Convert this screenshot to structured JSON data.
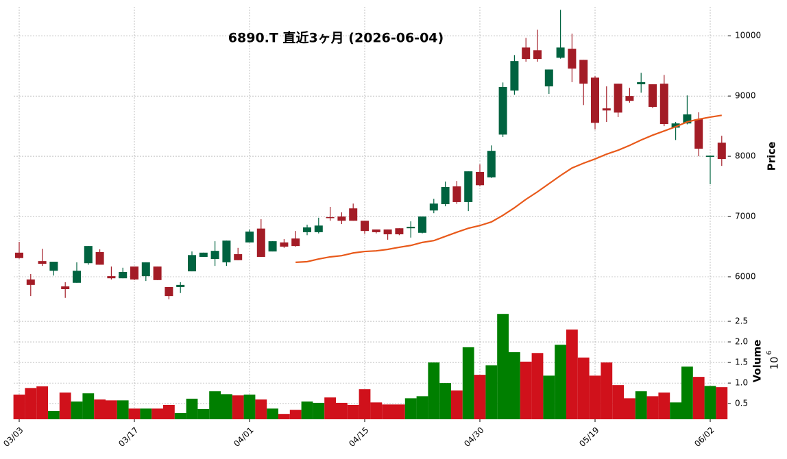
{
  "chart_data": {
    "type": "candlestick",
    "title": "6890.T 直近3ヶ月 (2026-06-04)",
    "categories": [
      "03/03",
      null,
      null,
      null,
      null,
      null,
      null,
      null,
      null,
      null,
      "03/17",
      null,
      null,
      null,
      null,
      null,
      null,
      null,
      null,
      null,
      "04/01",
      null,
      null,
      null,
      null,
      null,
      null,
      null,
      null,
      null,
      "04/15",
      null,
      null,
      null,
      null,
      null,
      null,
      null,
      null,
      null,
      "04/30",
      null,
      null,
      null,
      null,
      null,
      null,
      null,
      null,
      null,
      "05/19",
      null,
      null,
      null,
      null,
      null,
      null,
      null,
      null,
      null,
      "06/02",
      null
    ],
    "open": [
      6400,
      5955,
      6260,
      6100,
      5840,
      5900,
      6225,
      6410,
      6010,
      5975,
      6170,
      6010,
      6170,
      5830,
      5830,
      6090,
      6330,
      6295,
      6240,
      6375,
      6570,
      6800,
      6420,
      6570,
      6635,
      6740,
      6740,
      6990,
      7000,
      7135,
      6930,
      6785,
      6785,
      6805,
      6805,
      6730,
      7100,
      7205,
      7500,
      7240,
      7740,
      7650,
      8360,
      9090,
      9805,
      9760,
      9160,
      9635,
      9785,
      9600,
      9305,
      8795,
      9205,
      9000,
      9195,
      9195,
      9205,
      8475,
      8545,
      8615,
      7990,
      8225
    ],
    "high": [
      6580,
      6045,
      6465,
      6250,
      5910,
      6240,
      6510,
      6455,
      6170,
      6150,
      6170,
      6240,
      6170,
      5830,
      5910,
      6420,
      6400,
      6590,
      6600,
      6480,
      6785,
      6955,
      6590,
      6625,
      6760,
      6865,
      6980,
      7160,
      7070,
      7215,
      6930,
      6785,
      6785,
      6805,
      6920,
      7000,
      7295,
      7580,
      7590,
      7750,
      7865,
      8180,
      9225,
      9680,
      9965,
      10100,
      9440,
      10430,
      10035,
      9600,
      9330,
      9160,
      9205,
      9135,
      9385,
      9195,
      9350,
      8570,
      9010,
      8730,
      8010,
      8340
    ],
    "low": [
      6300,
      5680,
      6180,
      6020,
      5650,
      5900,
      6200,
      6200,
      5955,
      5975,
      5945,
      5930,
      5945,
      5625,
      5730,
      6090,
      6330,
      6180,
      6180,
      6275,
      6570,
      6330,
      6420,
      6480,
      6500,
      6690,
      6720,
      6930,
      6875,
      6930,
      6715,
      6720,
      6615,
      6690,
      6650,
      6720,
      7055,
      7170,
      7210,
      7090,
      7500,
      7640,
      8320,
      9020,
      9570,
      9570,
      9035,
      9620,
      9230,
      8850,
      8445,
      8570,
      8650,
      8890,
      9055,
      8800,
      8500,
      8270,
      8530,
      8000,
      7535,
      7840
    ],
    "close": [
      6310,
      5865,
      6215,
      6250,
      5795,
      6100,
      6510,
      6200,
      5975,
      6080,
      5955,
      6240,
      5945,
      5680,
      5865,
      6360,
      6400,
      6430,
      6600,
      6275,
      6750,
      6330,
      6590,
      6500,
      6510,
      6820,
      6850,
      6980,
      6930,
      6930,
      6760,
      6740,
      6705,
      6705,
      6830,
      7000,
      7215,
      7490,
      7240,
      7750,
      7520,
      8090,
      9150,
      9580,
      9615,
      9615,
      9440,
      9805,
      9455,
      9205,
      8555,
      8760,
      8725,
      8920,
      9230,
      8820,
      8535,
      8545,
      8695,
      8125,
      8010,
      7955
    ],
    "volume": [
      0.72,
      0.88,
      0.92,
      0.32,
      0.77,
      0.55,
      0.75,
      0.6,
      0.58,
      0.58,
      0.38,
      0.38,
      0.38,
      0.47,
      0.27,
      0.62,
      0.37,
      0.8,
      0.73,
      0.7,
      0.72,
      0.6,
      0.38,
      0.25,
      0.35,
      0.55,
      0.52,
      0.65,
      0.52,
      0.47,
      0.85,
      0.53,
      0.48,
      0.48,
      0.63,
      0.68,
      1.5,
      1.0,
      0.82,
      1.87,
      1.2,
      1.43,
      2.68,
      1.75,
      1.52,
      1.73,
      1.18,
      1.93,
      2.3,
      1.62,
      1.18,
      1.5,
      0.95,
      0.63,
      0.8,
      0.68,
      0.77,
      0.53,
      1.4,
      1.15,
      0.93,
      0.9
    ],
    "ma_values": [
      null,
      null,
      null,
      null,
      null,
      null,
      null,
      null,
      null,
      null,
      null,
      null,
      null,
      null,
      null,
      null,
      null,
      null,
      null,
      null,
      null,
      null,
      null,
      null,
      6240,
      6250,
      6295,
      6330,
      6350,
      6395,
      6420,
      6430,
      6455,
      6490,
      6520,
      6570,
      6600,
      6670,
      6740,
      6805,
      6850,
      6910,
      7020,
      7145,
      7285,
      7410,
      7545,
      7680,
      7805,
      7885,
      7955,
      8035,
      8100,
      8180,
      8270,
      8350,
      8420,
      8490,
      8570,
      8615,
      8650,
      8680
    ],
    "ma_color": "#e8591a",
    "up_color": "#006340",
    "down_color": "#a31c26",
    "volume_up_color": "#007f00",
    "volume_down_color": "#d0111b",
    "ylabel": "Price",
    "ylim": [
      5420,
      10480
    ],
    "yticks": [
      6000,
      7000,
      8000,
      9000,
      10000
    ],
    "y2label": "Volume",
    "y2label_base": "10",
    "y2label_exponent": "6",
    "y2lim": [
      0.12,
      2.7
    ],
    "y2ticks": [
      0.5,
      {
        "value": 1,
        "label": "1.0"
      },
      1.5,
      {
        "value": 2,
        "label": "2.0"
      },
      2.5
    ],
    "grid": true
  }
}
